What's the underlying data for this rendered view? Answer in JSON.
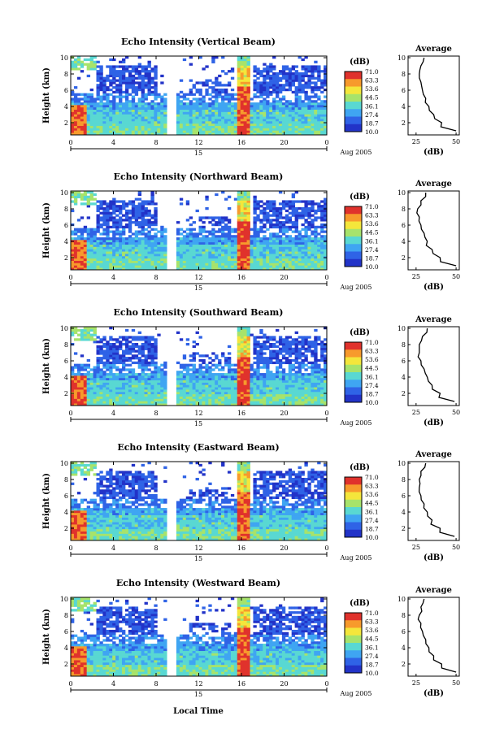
{
  "figure": {
    "xlabel": "Local Time",
    "date_label": "Aug 2005",
    "day_label": "15",
    "colorbar_unit": "(dB)",
    "colorbar_ticks": [
      "71.0",
      "63.3",
      "53.6",
      "44.5",
      "36.1",
      "27.4",
      "18.7",
      "10.0"
    ],
    "colors": [
      "#2233c8",
      "#2f63e6",
      "#3fa5f2",
      "#59d8d2",
      "#a7e36b",
      "#f4e63b",
      "#f79a2c",
      "#e0322c"
    ],
    "profile_title": "Average",
    "profile_xlabel": "(dB)"
  },
  "chart_data": [
    {
      "type": "heatmap",
      "title": "Echo Intensity (Vertical Beam)",
      "ylabel": "Height (km)",
      "x_ticks": [
        "0",
        "4",
        "8",
        "12",
        "16",
        "20",
        "0"
      ],
      "y_ticks": [
        "2",
        "4",
        "6",
        "8",
        "10"
      ],
      "xlim": [
        0,
        24
      ],
      "ylim": [
        0.5,
        10.2
      ],
      "clim": [
        10.0,
        71.0
      ],
      "profile": {
        "x_ticks": [
          "25",
          "50"
        ],
        "y_ticks": [
          "2",
          "4",
          "6",
          "8",
          "10"
        ],
        "xlim": [
          20,
          52
        ],
        "heights": [
          1,
          2,
          3,
          4,
          5,
          6,
          7,
          8,
          9,
          10
        ],
        "values": [
          50,
          41,
          36,
          33,
          31,
          29,
          28,
          27,
          28,
          30
        ]
      }
    },
    {
      "type": "heatmap",
      "title": "Echo Intensity (Northward Beam)",
      "ylabel": "Height (km)",
      "x_ticks": [
        "0",
        "4",
        "8",
        "12",
        "16",
        "20",
        "0"
      ],
      "y_ticks": [
        "2",
        "4",
        "6",
        "8",
        "10"
      ],
      "xlim": [
        0,
        24
      ],
      "ylim": [
        0.5,
        10.2
      ],
      "clim": [
        10.0,
        71.0
      ],
      "profile": {
        "x_ticks": [
          "25",
          "50"
        ],
        "y_ticks": [
          "2",
          "4",
          "6",
          "8",
          "10"
        ],
        "xlim": [
          20,
          52
        ],
        "heights": [
          1,
          2,
          3,
          4,
          5,
          6,
          7,
          8,
          9,
          10
        ],
        "values": [
          50,
          40,
          35,
          32,
          30,
          28,
          27,
          26,
          28,
          31
        ]
      }
    },
    {
      "type": "heatmap",
      "title": "Echo Intensity (Southward Beam)",
      "ylabel": "Height (km)",
      "x_ticks": [
        "0",
        "4",
        "8",
        "12",
        "16",
        "20",
        "0"
      ],
      "y_ticks": [
        "2",
        "4",
        "6",
        "8",
        "10"
      ],
      "xlim": [
        0,
        24
      ],
      "ylim": [
        0.5,
        10.2
      ],
      "clim": [
        10.0,
        71.0
      ],
      "profile": {
        "x_ticks": [
          "25",
          "50"
        ],
        "y_ticks": [
          "2",
          "4",
          "6",
          "8",
          "10"
        ],
        "xlim": [
          20,
          52
        ],
        "heights": [
          1,
          2,
          3,
          4,
          5,
          6,
          7,
          8,
          9,
          10
        ],
        "values": [
          49,
          40,
          35,
          32,
          30,
          28,
          27,
          27,
          29,
          32
        ]
      }
    },
    {
      "type": "heatmap",
      "title": "Echo Intensity (Eastward Beam)",
      "ylabel": "Height (km)",
      "x_ticks": [
        "0",
        "4",
        "8",
        "12",
        "16",
        "20",
        "0"
      ],
      "y_ticks": [
        "2",
        "4",
        "6",
        "8",
        "10"
      ],
      "xlim": [
        0,
        24
      ],
      "ylim": [
        0.5,
        10.2
      ],
      "clim": [
        10.0,
        71.0
      ],
      "profile": {
        "x_ticks": [
          "25",
          "50"
        ],
        "y_ticks": [
          "2",
          "4",
          "6",
          "8",
          "10"
        ],
        "xlim": [
          20,
          52
        ],
        "heights": [
          1,
          2,
          3,
          4,
          5,
          6,
          7,
          8,
          9,
          10
        ],
        "values": [
          49,
          40,
          35,
          32,
          30,
          28,
          27,
          27,
          28,
          31
        ]
      }
    },
    {
      "type": "heatmap",
      "title": "Echo Intensity (Westward Beam)",
      "ylabel": "Height (km)",
      "x_ticks": [
        "0",
        "4",
        "8",
        "12",
        "16",
        "20",
        "0"
      ],
      "y_ticks": [
        "2",
        "4",
        "6",
        "8",
        "10"
      ],
      "xlim": [
        0,
        24
      ],
      "ylim": [
        0.5,
        10.2
      ],
      "clim": [
        10.0,
        71.0
      ],
      "profile": {
        "x_ticks": [
          "25",
          "50"
        ],
        "y_ticks": [
          "2",
          "4",
          "6",
          "8",
          "10"
        ],
        "xlim": [
          20,
          52
        ],
        "heights": [
          1,
          2,
          3,
          4,
          5,
          6,
          7,
          8,
          9,
          10
        ],
        "values": [
          50,
          41,
          36,
          33,
          31,
          29,
          28,
          27,
          28,
          30
        ]
      }
    }
  ]
}
